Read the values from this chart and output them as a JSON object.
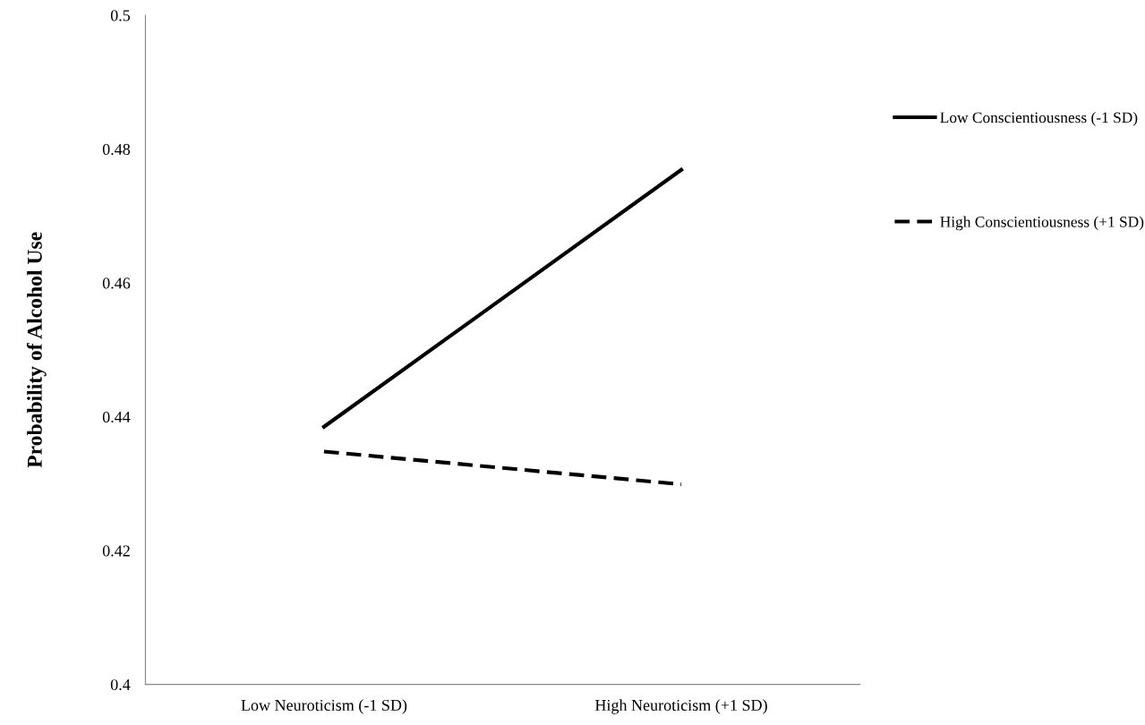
{
  "chart_data": {
    "type": "line",
    "ylabel": "Probability of Alcohol Use",
    "categories": [
      "Low Neuroticism (-1 SD)",
      "High Neuroticism (+1 SD)"
    ],
    "series": [
      {
        "name": "Low Conscientiousness (-1 SD)",
        "color": "#000000",
        "line_style": "solid",
        "values": [
          0.4385,
          0.4769
        ]
      },
      {
        "name": "High Conscientiousness (+1 SD)",
        "color": "#000000",
        "line_style": "dashed",
        "values": [
          0.4348,
          0.4299
        ]
      }
    ],
    "ylim": [
      0.4,
      0.5
    ],
    "yticks": [
      0.4,
      0.42,
      0.44,
      0.46,
      0.48,
      0.5
    ],
    "grid": false,
    "legend": "top right",
    "marker": "none"
  }
}
